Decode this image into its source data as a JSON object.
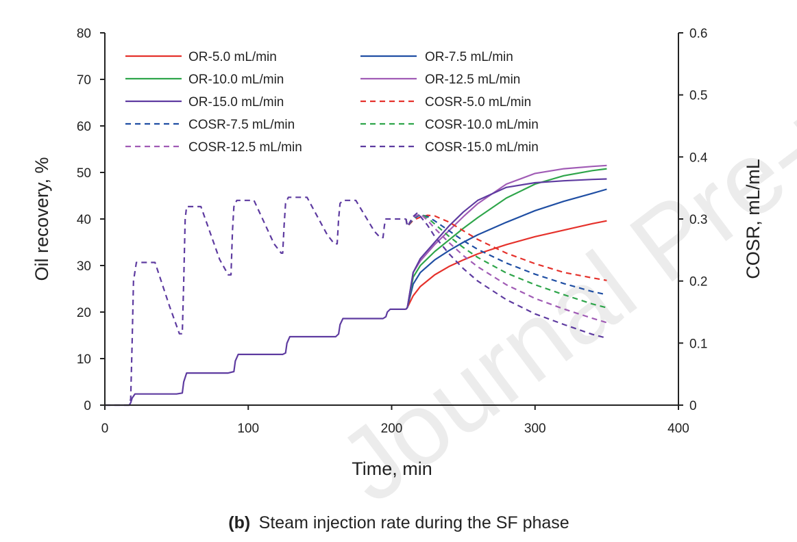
{
  "watermark": "Journal Pre-proof",
  "chart_data": {
    "type": "line",
    "xlabel": "Time, min",
    "ylabel": "Oil recovery, %",
    "y2label": "COSR, mL/mL",
    "xlim": [
      0,
      400
    ],
    "ylim": [
      0,
      80
    ],
    "y2lim": [
      0,
      0.6
    ],
    "xticks": [
      0,
      100,
      200,
      300,
      400
    ],
    "yticks": [
      0,
      10,
      20,
      30,
      40,
      50,
      60,
      70,
      80
    ],
    "y2ticks": [
      0,
      0.1,
      0.2,
      0.3,
      0.4,
      0.5,
      0.6
    ],
    "grid": false,
    "legend_position": "top-left",
    "caption_label": "(b)",
    "caption_text": "Steam injection rate during the SF phase",
    "shared_or": {
      "x": [
        0,
        17,
        18,
        19,
        21,
        50,
        54,
        55,
        57,
        86,
        90,
        91,
        93,
        124,
        126,
        127,
        129,
        161,
        163,
        164,
        166,
        194,
        196,
        197,
        199,
        210
      ],
      "y": [
        0,
        0,
        0.5,
        1.5,
        2.4,
        2.4,
        2.6,
        5.0,
        6.9,
        6.9,
        7.2,
        9.5,
        10.9,
        10.9,
        11.2,
        13.3,
        14.7,
        14.7,
        15.3,
        17.3,
        18.6,
        18.6,
        19.0,
        20.0,
        20.6,
        20.6
      ]
    },
    "shared_cosr": {
      "x": [
        0,
        17,
        18,
        19,
        20,
        22,
        35,
        45,
        52,
        54,
        55,
        56,
        57,
        67,
        80,
        86,
        88,
        89,
        90,
        92,
        104,
        118,
        123,
        124,
        125,
        126,
        128,
        141,
        155,
        160,
        162,
        163,
        164,
        166,
        175,
        188,
        192,
        194,
        195,
        196,
        198,
        210
      ],
      "y": [
        0,
        0,
        0.01,
        0.1,
        0.2,
        0.23,
        0.23,
        0.16,
        0.115,
        0.115,
        0.2,
        0.3,
        0.32,
        0.32,
        0.235,
        0.21,
        0.21,
        0.28,
        0.32,
        0.33,
        0.33,
        0.26,
        0.245,
        0.245,
        0.29,
        0.325,
        0.335,
        0.335,
        0.275,
        0.26,
        0.26,
        0.3,
        0.325,
        0.33,
        0.33,
        0.28,
        0.27,
        0.27,
        0.29,
        0.3,
        0.3,
        0.3
      ]
    },
    "series": [
      {
        "name": "OR-5.0 mL/min",
        "axis": "left",
        "style": "solid",
        "color": "#e5312b",
        "x": [
          211,
          215,
          220,
          230,
          240,
          250,
          260,
          280,
          300,
          320,
          340,
          350
        ],
        "y": [
          21.0,
          23.5,
          25.5,
          28.0,
          29.8,
          31.2,
          32.5,
          34.5,
          36.2,
          37.6,
          39.0,
          39.6
        ]
      },
      {
        "name": "OR-7.5 mL/min",
        "axis": "left",
        "style": "solid",
        "color": "#1f4ea3",
        "x": [
          211,
          215,
          220,
          230,
          240,
          250,
          260,
          280,
          300,
          320,
          340,
          350
        ],
        "y": [
          21.0,
          26.0,
          28.5,
          31.2,
          33.2,
          35.0,
          36.6,
          39.3,
          41.8,
          43.8,
          45.5,
          46.4
        ]
      },
      {
        "name": "OR-10.0 mL/min",
        "axis": "left",
        "style": "solid",
        "color": "#2ea54a",
        "x": [
          211,
          215,
          220,
          230,
          240,
          250,
          260,
          280,
          300,
          320,
          340,
          350
        ],
        "y": [
          21.0,
          27.5,
          30.0,
          33.0,
          35.5,
          38.0,
          40.3,
          44.5,
          47.5,
          49.3,
          50.4,
          50.8
        ]
      },
      {
        "name": "OR-12.5 mL/min",
        "axis": "left",
        "style": "solid",
        "color": "#a05bb5",
        "x": [
          211,
          215,
          220,
          230,
          240,
          250,
          260,
          280,
          300,
          320,
          340,
          350
        ],
        "y": [
          21.0,
          28.5,
          31.0,
          34.5,
          37.5,
          40.5,
          43.3,
          47.5,
          49.8,
          50.8,
          51.3,
          51.5
        ]
      },
      {
        "name": "OR-15.0 mL/min",
        "axis": "left",
        "style": "solid",
        "color": "#5e3ba0",
        "x": [
          211,
          215,
          220,
          230,
          240,
          250,
          260,
          280,
          300,
          320,
          340,
          350
        ],
        "y": [
          21.0,
          28.5,
          31.5,
          35.0,
          38.5,
          41.5,
          44.0,
          46.8,
          47.8,
          48.2,
          48.5,
          48.6
        ]
      },
      {
        "name": "COSR-5.0 mL/min",
        "axis": "right",
        "style": "dashed",
        "color": "#e5312b",
        "x": [
          211,
          215,
          220,
          225,
          230,
          240,
          250,
          260,
          280,
          300,
          320,
          340,
          350
        ],
        "y": [
          0.288,
          0.298,
          0.303,
          0.306,
          0.305,
          0.295,
          0.281,
          0.267,
          0.245,
          0.228,
          0.214,
          0.205,
          0.201
        ]
      },
      {
        "name": "COSR-7.5 mL/min",
        "axis": "right",
        "style": "dashed",
        "color": "#1f4ea3",
        "x": [
          211,
          215,
          220,
          225,
          230,
          240,
          250,
          260,
          280,
          300,
          320,
          340,
          350
        ],
        "y": [
          0.288,
          0.3,
          0.307,
          0.304,
          0.297,
          0.281,
          0.265,
          0.251,
          0.229,
          0.211,
          0.196,
          0.183,
          0.178
        ]
      },
      {
        "name": "COSR-10.0 mL/min",
        "axis": "right",
        "style": "dashed",
        "color": "#2ea54a",
        "x": [
          211,
          215,
          220,
          225,
          230,
          240,
          250,
          260,
          280,
          300,
          320,
          340,
          350
        ],
        "y": [
          0.288,
          0.302,
          0.308,
          0.302,
          0.292,
          0.272,
          0.254,
          0.238,
          0.213,
          0.194,
          0.178,
          0.163,
          0.157
        ]
      },
      {
        "name": "COSR-12.5 mL/min",
        "axis": "right",
        "style": "dashed",
        "color": "#a05bb5",
        "x": [
          211,
          215,
          220,
          225,
          230,
          240,
          250,
          260,
          280,
          300,
          320,
          340,
          350
        ],
        "y": [
          0.288,
          0.303,
          0.308,
          0.298,
          0.285,
          0.262,
          0.241,
          0.223,
          0.194,
          0.172,
          0.155,
          0.14,
          0.133
        ]
      },
      {
        "name": "COSR-15.0 mL/min",
        "axis": "right",
        "style": "dashed",
        "color": "#5e3ba0",
        "x": [
          211,
          215,
          218,
          225,
          230,
          240,
          250,
          260,
          280,
          300,
          320,
          340,
          350
        ],
        "y": [
          0.288,
          0.304,
          0.31,
          0.29,
          0.272,
          0.244,
          0.22,
          0.2,
          0.17,
          0.147,
          0.13,
          0.114,
          0.108
        ]
      }
    ]
  }
}
